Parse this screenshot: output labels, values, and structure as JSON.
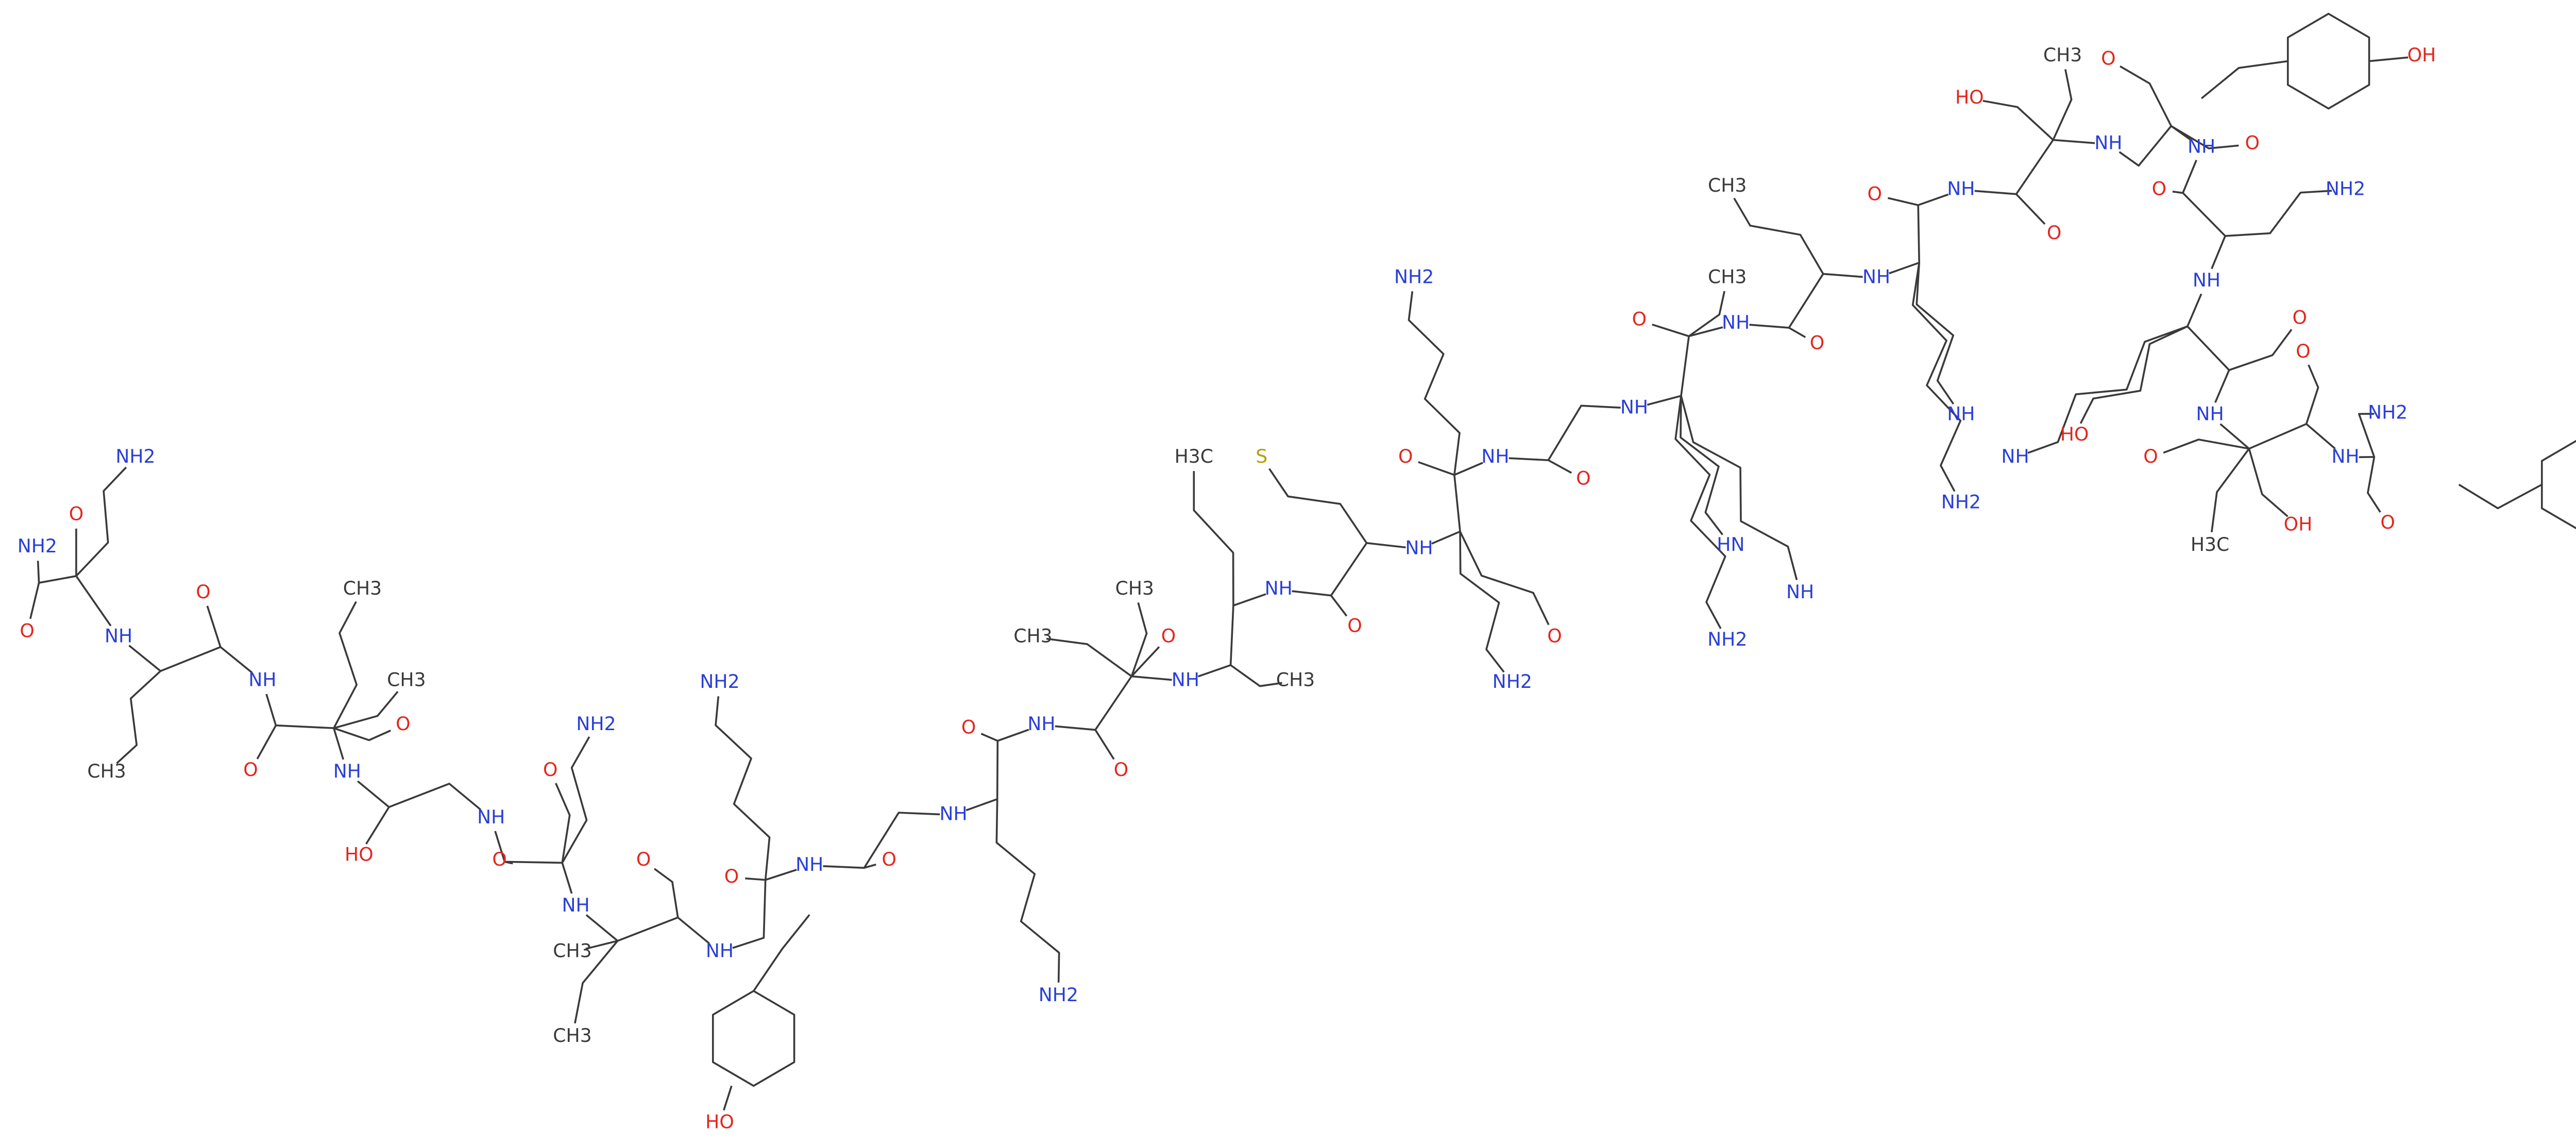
{
  "atoms": [
    "NH2",
    "O",
    "NH2",
    "O",
    "NH",
    "O",
    "CH3",
    "CH3",
    "CH3",
    "NH",
    "O",
    "NH",
    "O",
    "HO",
    "NH",
    "O",
    "NH2",
    "O",
    "NH",
    "O",
    "CH3",
    "CH3",
    "NH",
    "O",
    "HO",
    "NH",
    "O",
    "NH2",
    "NH",
    "O",
    "NH2",
    "NH",
    "O",
    "CH3",
    "CH3",
    "NH",
    "O",
    "CH3",
    "NH",
    "O",
    "H3C",
    "S",
    "NH",
    "O",
    "NH",
    "O",
    "O",
    "NH2",
    "NH2",
    "NH",
    "O",
    "NH",
    "O",
    "HN",
    "NH",
    "NH2",
    "CH3",
    "CH3",
    "NH",
    "O",
    "NH",
    "O",
    "NH",
    "NH",
    "NH2",
    "HO",
    "CH3",
    "NH",
    "O",
    "NH",
    "O",
    "OH",
    "O",
    "NH2",
    "NH",
    "O",
    "NH",
    "O",
    "HO",
    "O",
    "NH",
    "O",
    "NH2",
    "H3C",
    "OH"
  ]
}
